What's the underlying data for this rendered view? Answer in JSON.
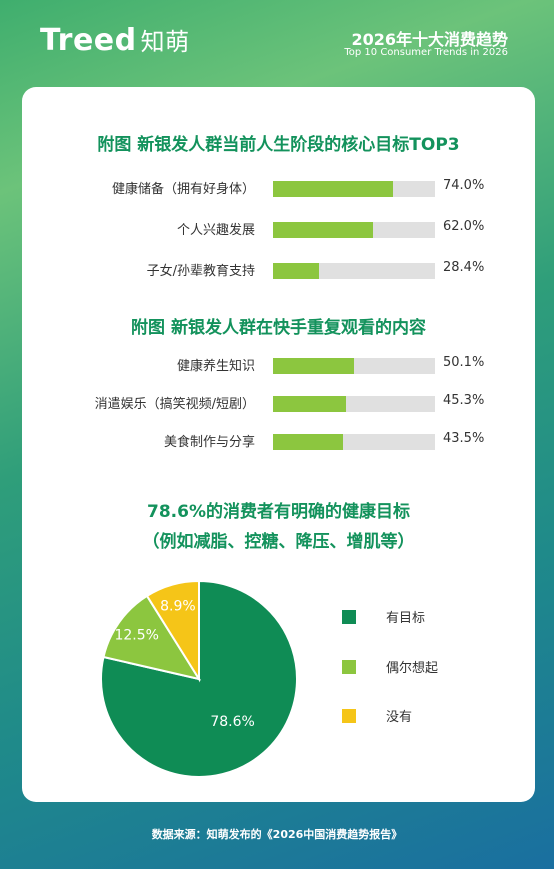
{
  "header": {
    "brand": "Treed",
    "brand_cn": "知萌",
    "title": "2026年十大消费趋势",
    "subtitle": "Top 10 Consumer Trends in 2026"
  },
  "section1": {
    "title": "附图 新银发人群当前人生阶段的核心目标TOP3"
  },
  "section2": {
    "title": "附图 新银发人群在快手重复观看的内容"
  },
  "section3": {
    "title_line1": "78.6%的消费者有明确的健康目标",
    "title_line2": "（例如减脂、控糖、降压、增肌等）"
  },
  "source": "数据来源：知萌发布的《2026中国消费趋势报告》",
  "colors": {
    "accent_green": "#13925c",
    "bar_green": "#8cc63f",
    "pie_dark_green": "#0f8c55",
    "pie_light_green": "#8cc63f",
    "pie_yellow": "#f5c518"
  },
  "chart_data": [
    {
      "type": "bar",
      "title": "附图 新银发人群当前人生阶段的核心目标TOP3",
      "categories": [
        "健康储备（拥有好身体）",
        "个人兴趣发展",
        "子女/孙辈教育支持"
      ],
      "values": [
        74.0,
        62.0,
        28.4
      ],
      "value_labels": [
        "74.0%",
        "62.0%",
        "28.4%"
      ],
      "xlim": [
        0,
        100
      ]
    },
    {
      "type": "bar",
      "title": "附图 新银发人群在快手重复观看的内容",
      "categories": [
        "健康养生知识",
        "消遣娱乐（搞笑视频/短剧）",
        "美食制作与分享"
      ],
      "values": [
        50.1,
        45.3,
        43.5
      ],
      "value_labels": [
        "50.1%",
        "45.3%",
        "43.5%"
      ],
      "xlim": [
        0,
        100
      ]
    },
    {
      "type": "pie",
      "title": "78.6%的消费者有明确的健康目标（例如减脂、控糖、降压、增肌等）",
      "categories": [
        "有目标",
        "偶尔想起",
        "没有"
      ],
      "values": [
        78.6,
        12.5,
        8.9
      ],
      "value_labels": [
        "78.6%",
        "12.5%",
        "8.9%"
      ],
      "colors": [
        "#0f8c55",
        "#8cc63f",
        "#f5c518"
      ],
      "legend": "right"
    }
  ]
}
